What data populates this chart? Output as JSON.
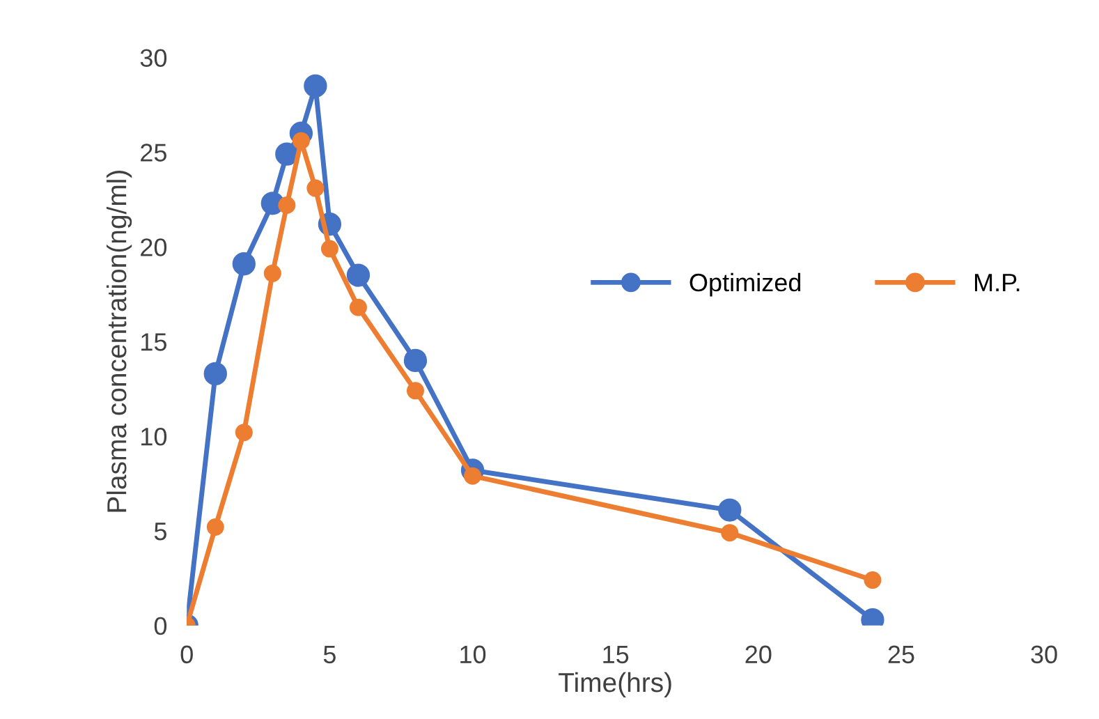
{
  "chart_data": {
    "type": "line",
    "xlabel": "Time(hrs)",
    "ylabel": "Plasma concentration(ng/ml)",
    "xlim": [
      0,
      30
    ],
    "xticks": [
      0,
      5,
      10,
      15,
      20,
      25,
      30
    ],
    "ylim": [
      0,
      30
    ],
    "yticks": [
      0,
      5,
      10,
      15,
      20,
      25,
      30
    ],
    "marker": "circle",
    "line_style": "solid",
    "grid": false,
    "legend": "right",
    "series": [
      {
        "name": "Optimized",
        "color": "#4472c4",
        "x": [
          0,
          1,
          2,
          3,
          3.5,
          4,
          4.5,
          5,
          6,
          8,
          10,
          19,
          24
        ],
        "values": [
          0,
          13.3,
          19.1,
          22.3,
          24.9,
          26.0,
          28.5,
          21.2,
          18.5,
          14.0,
          8.2,
          6.1,
          0.3
        ]
      },
      {
        "name": "M.P.",
        "color": "#ed7d31",
        "x": [
          0,
          1,
          2,
          3,
          3.5,
          4,
          4.5,
          5,
          6,
          8,
          10,
          19,
          24
        ],
        "values": [
          0,
          5.2,
          10.2,
          18.6,
          22.2,
          25.6,
          23.1,
          19.9,
          16.8,
          12.4,
          7.9,
          4.9,
          2.4
        ]
      }
    ]
  }
}
